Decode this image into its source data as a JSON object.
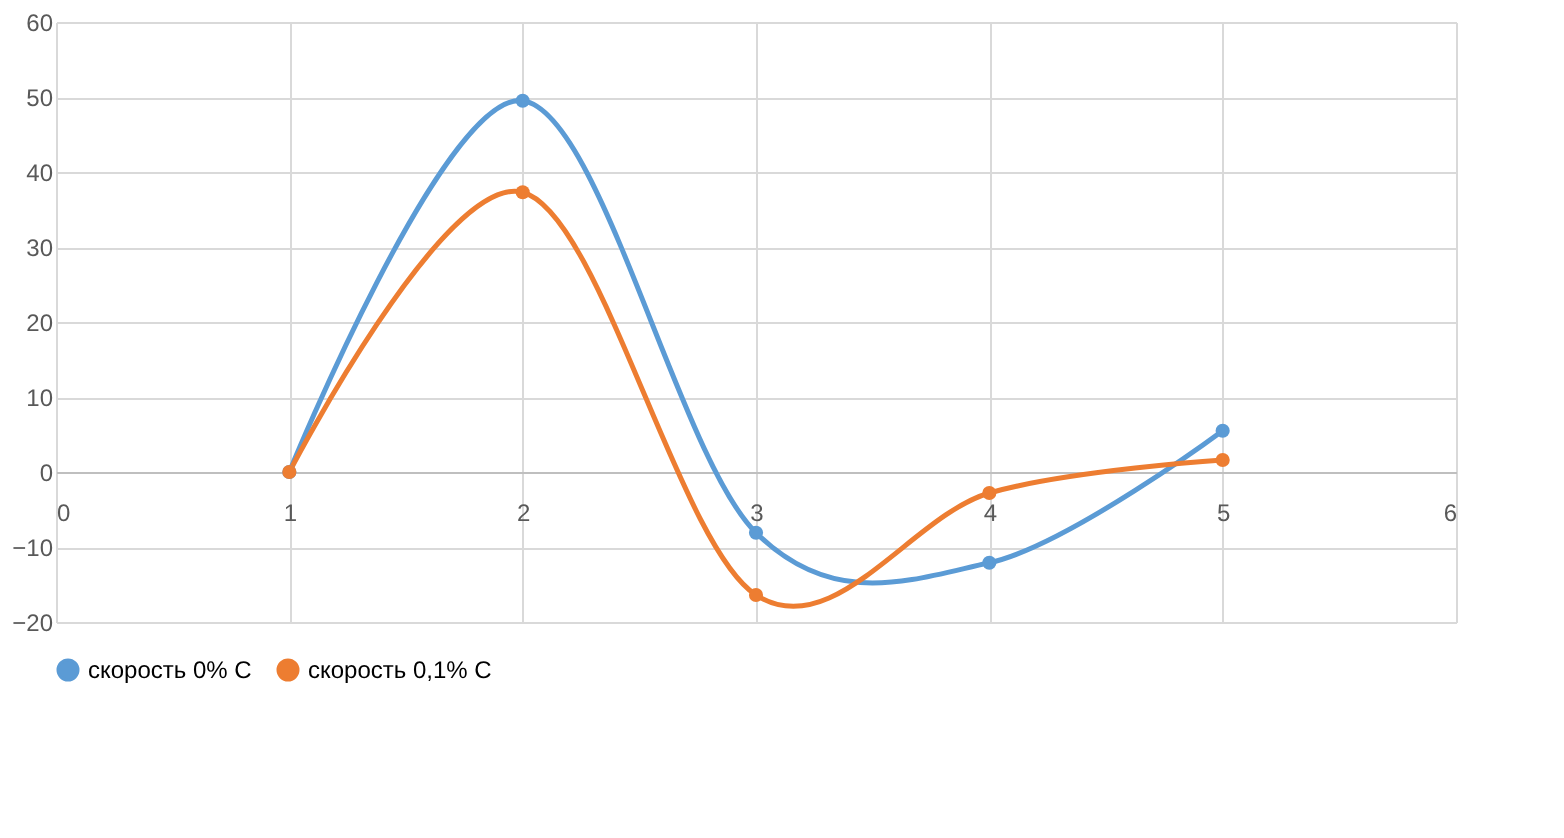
{
  "chart_data": {
    "type": "line",
    "x": [
      1,
      2,
      3,
      4,
      5
    ],
    "series": [
      {
        "name": "скорость 0% С",
        "color": "#5b9bd5",
        "values": [
          0,
          49.5,
          -8.1,
          -12.1,
          5.5
        ]
      },
      {
        "name": "скорость 0,1% С",
        "color": "#ed7d31",
        "values": [
          0,
          37.3,
          -16.4,
          -2.8,
          1.6
        ]
      }
    ],
    "xlim": [
      0,
      6
    ],
    "xticks": [
      0,
      1,
      2,
      3,
      4,
      5,
      6
    ],
    "ylim": [
      -20,
      60
    ],
    "yticks": [
      -20,
      -10,
      0,
      10,
      20,
      30,
      40,
      50,
      60
    ],
    "grid": true,
    "legend": "bottom",
    "marker": "circle",
    "line_style": "solid"
  }
}
